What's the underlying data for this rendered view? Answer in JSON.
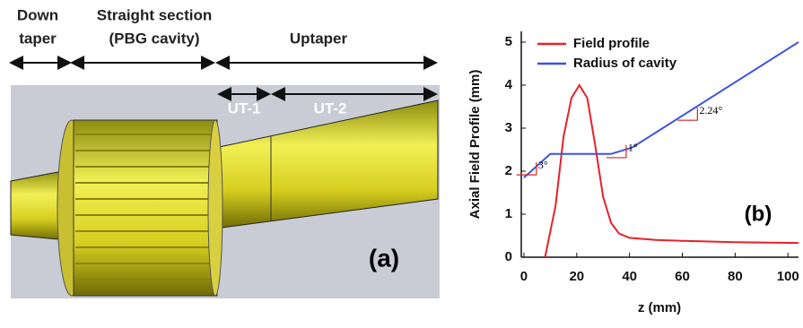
{
  "diagram": {
    "labels": {
      "down_taper": [
        "Down",
        "taper"
      ],
      "straight": [
        "Straight section",
        "(PBG cavity)"
      ],
      "uptaper": "Uptaper",
      "ut1": "UT-1",
      "ut2": "UT-2",
      "panel": "(a)"
    }
  },
  "chart_data": {
    "type": "line",
    "x_label": "z (mm)",
    "y_label": "Axial Field Profile (mm)",
    "panel_label": "(b)",
    "annotations": [
      "3°",
      "1°",
      "2.24°"
    ],
    "xlim": [
      -1,
      104
    ],
    "xticks": [
      0,
      20,
      40,
      60,
      80,
      100
    ],
    "ylim": [
      0,
      5.25
    ],
    "yticks": [
      0,
      1,
      2,
      3,
      4,
      5
    ],
    "legend": "upper left",
    "series": [
      {
        "name": "Field profile",
        "color": "#e8202a",
        "x": [
          8,
          12,
          15,
          18,
          21,
          24,
          27,
          30,
          33,
          36,
          40,
          50,
          60,
          80,
          104
        ],
        "values": [
          0,
          1.2,
          2.8,
          3.7,
          4.0,
          3.7,
          2.6,
          1.4,
          0.8,
          0.55,
          0.45,
          0.4,
          0.38,
          0.35,
          0.33
        ]
      },
      {
        "name": "Radius of cavity",
        "color": "#3b55e0",
        "x": [
          0,
          10,
          33,
          41,
          104
        ],
        "values": [
          1.85,
          2.4,
          2.4,
          2.55,
          5.0
        ]
      }
    ]
  }
}
